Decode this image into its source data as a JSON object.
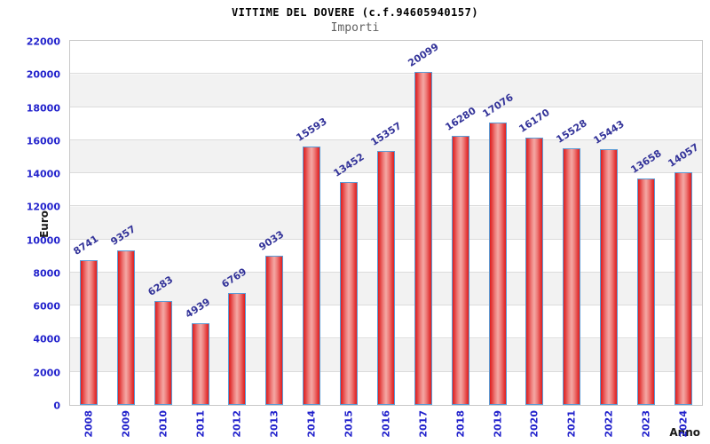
{
  "header": {
    "title": "VITTIME DEL DOVERE (c.f.94605940157)",
    "subtitle": "Importi"
  },
  "colors": {
    "bar_fill_edge": "#e02020",
    "bar_fill_center": "#f4a8a4",
    "bar_border": "#5b9bd5",
    "axis_tick_label": "#2222cc",
    "value_label": "#333399",
    "band_gray": "#f2f2f2",
    "gridline": "#dcdcdc",
    "plot_border": "#c8c8c8",
    "subtitle_gray": "#606060"
  },
  "chart_data": {
    "type": "bar",
    "title": "VITTIME DEL DOVERE (c.f.94605940157)",
    "subtitle": "Importi",
    "xlabel": "Anno",
    "ylabel": "Euro",
    "categories": [
      "2008",
      "2009",
      "2010",
      "2011",
      "2012",
      "2013",
      "2014",
      "2015",
      "2016",
      "2017",
      "2018",
      "2019",
      "2020",
      "2021",
      "2022",
      "2023",
      "2024"
    ],
    "values": [
      8741,
      9357,
      6283,
      4939,
      6769,
      9033,
      15593,
      13452,
      15357,
      20099,
      16280,
      17076,
      16170,
      15528,
      15443,
      13658,
      14057
    ],
    "ylim": [
      0,
      22000
    ],
    "ytick_step": 2000,
    "yticks": [
      "0",
      "2000",
      "4000",
      "6000",
      "8000",
      "10000",
      "12000",
      "14000",
      "16000",
      "18000",
      "20000",
      "22000"
    ],
    "grid": "horizontal",
    "legend": "none",
    "bands": "alternating horizontal gray/white every 2000"
  }
}
